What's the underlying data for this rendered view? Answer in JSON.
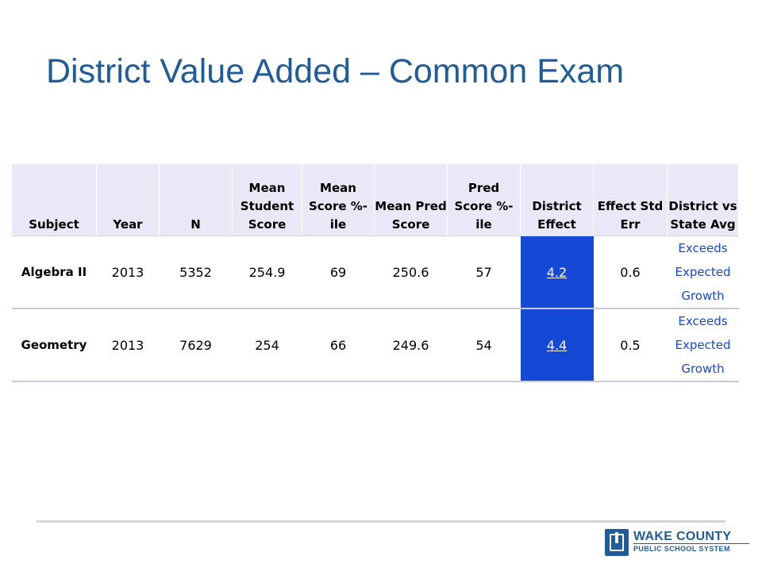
{
  "slide": {
    "title": "District Value Added – Common Exam"
  },
  "table": {
    "headers": {
      "subject": "Subject",
      "year": "Year",
      "n": "N",
      "mean_student_score": "Mean Student Score",
      "mean_score_pctile": "Mean Score %-ile",
      "mean_pred_score": "Mean Pred Score",
      "pred_score_pctile": "Pred Score %-ile",
      "district_effect": "District Effect",
      "effect_std_err": "Effect Std Err",
      "district_vs_state": "District vs State Avg"
    },
    "rows": [
      {
        "subject": "Algebra II",
        "year": "2013",
        "n": "5352",
        "mean_student_score": "254.9",
        "mean_score_pctile": "69",
        "mean_pred_score": "250.6",
        "pred_score_pctile": "57",
        "district_effect": "4.2",
        "effect_std_err": "0.6",
        "district_vs_state": "Exceeds Expected Growth"
      },
      {
        "subject": "Geometry",
        "year": "2013",
        "n": "7629",
        "mean_student_score": "254",
        "mean_score_pctile": "66",
        "mean_pred_score": "249.6",
        "pred_score_pctile": "54",
        "district_effect": "4.4",
        "effect_std_err": "0.5",
        "district_vs_state": "Exceeds Expected Growth"
      }
    ]
  },
  "logo": {
    "line1": "WAKE COUNTY",
    "line2": "PUBLIC SCHOOL SYSTEM",
    "icon": "wake-county-logo-icon"
  },
  "colors": {
    "title": "#1f5c99",
    "header_bg": "#e8e8f6",
    "effect_bg": "#1648d6",
    "status_text": "#1648d6"
  }
}
